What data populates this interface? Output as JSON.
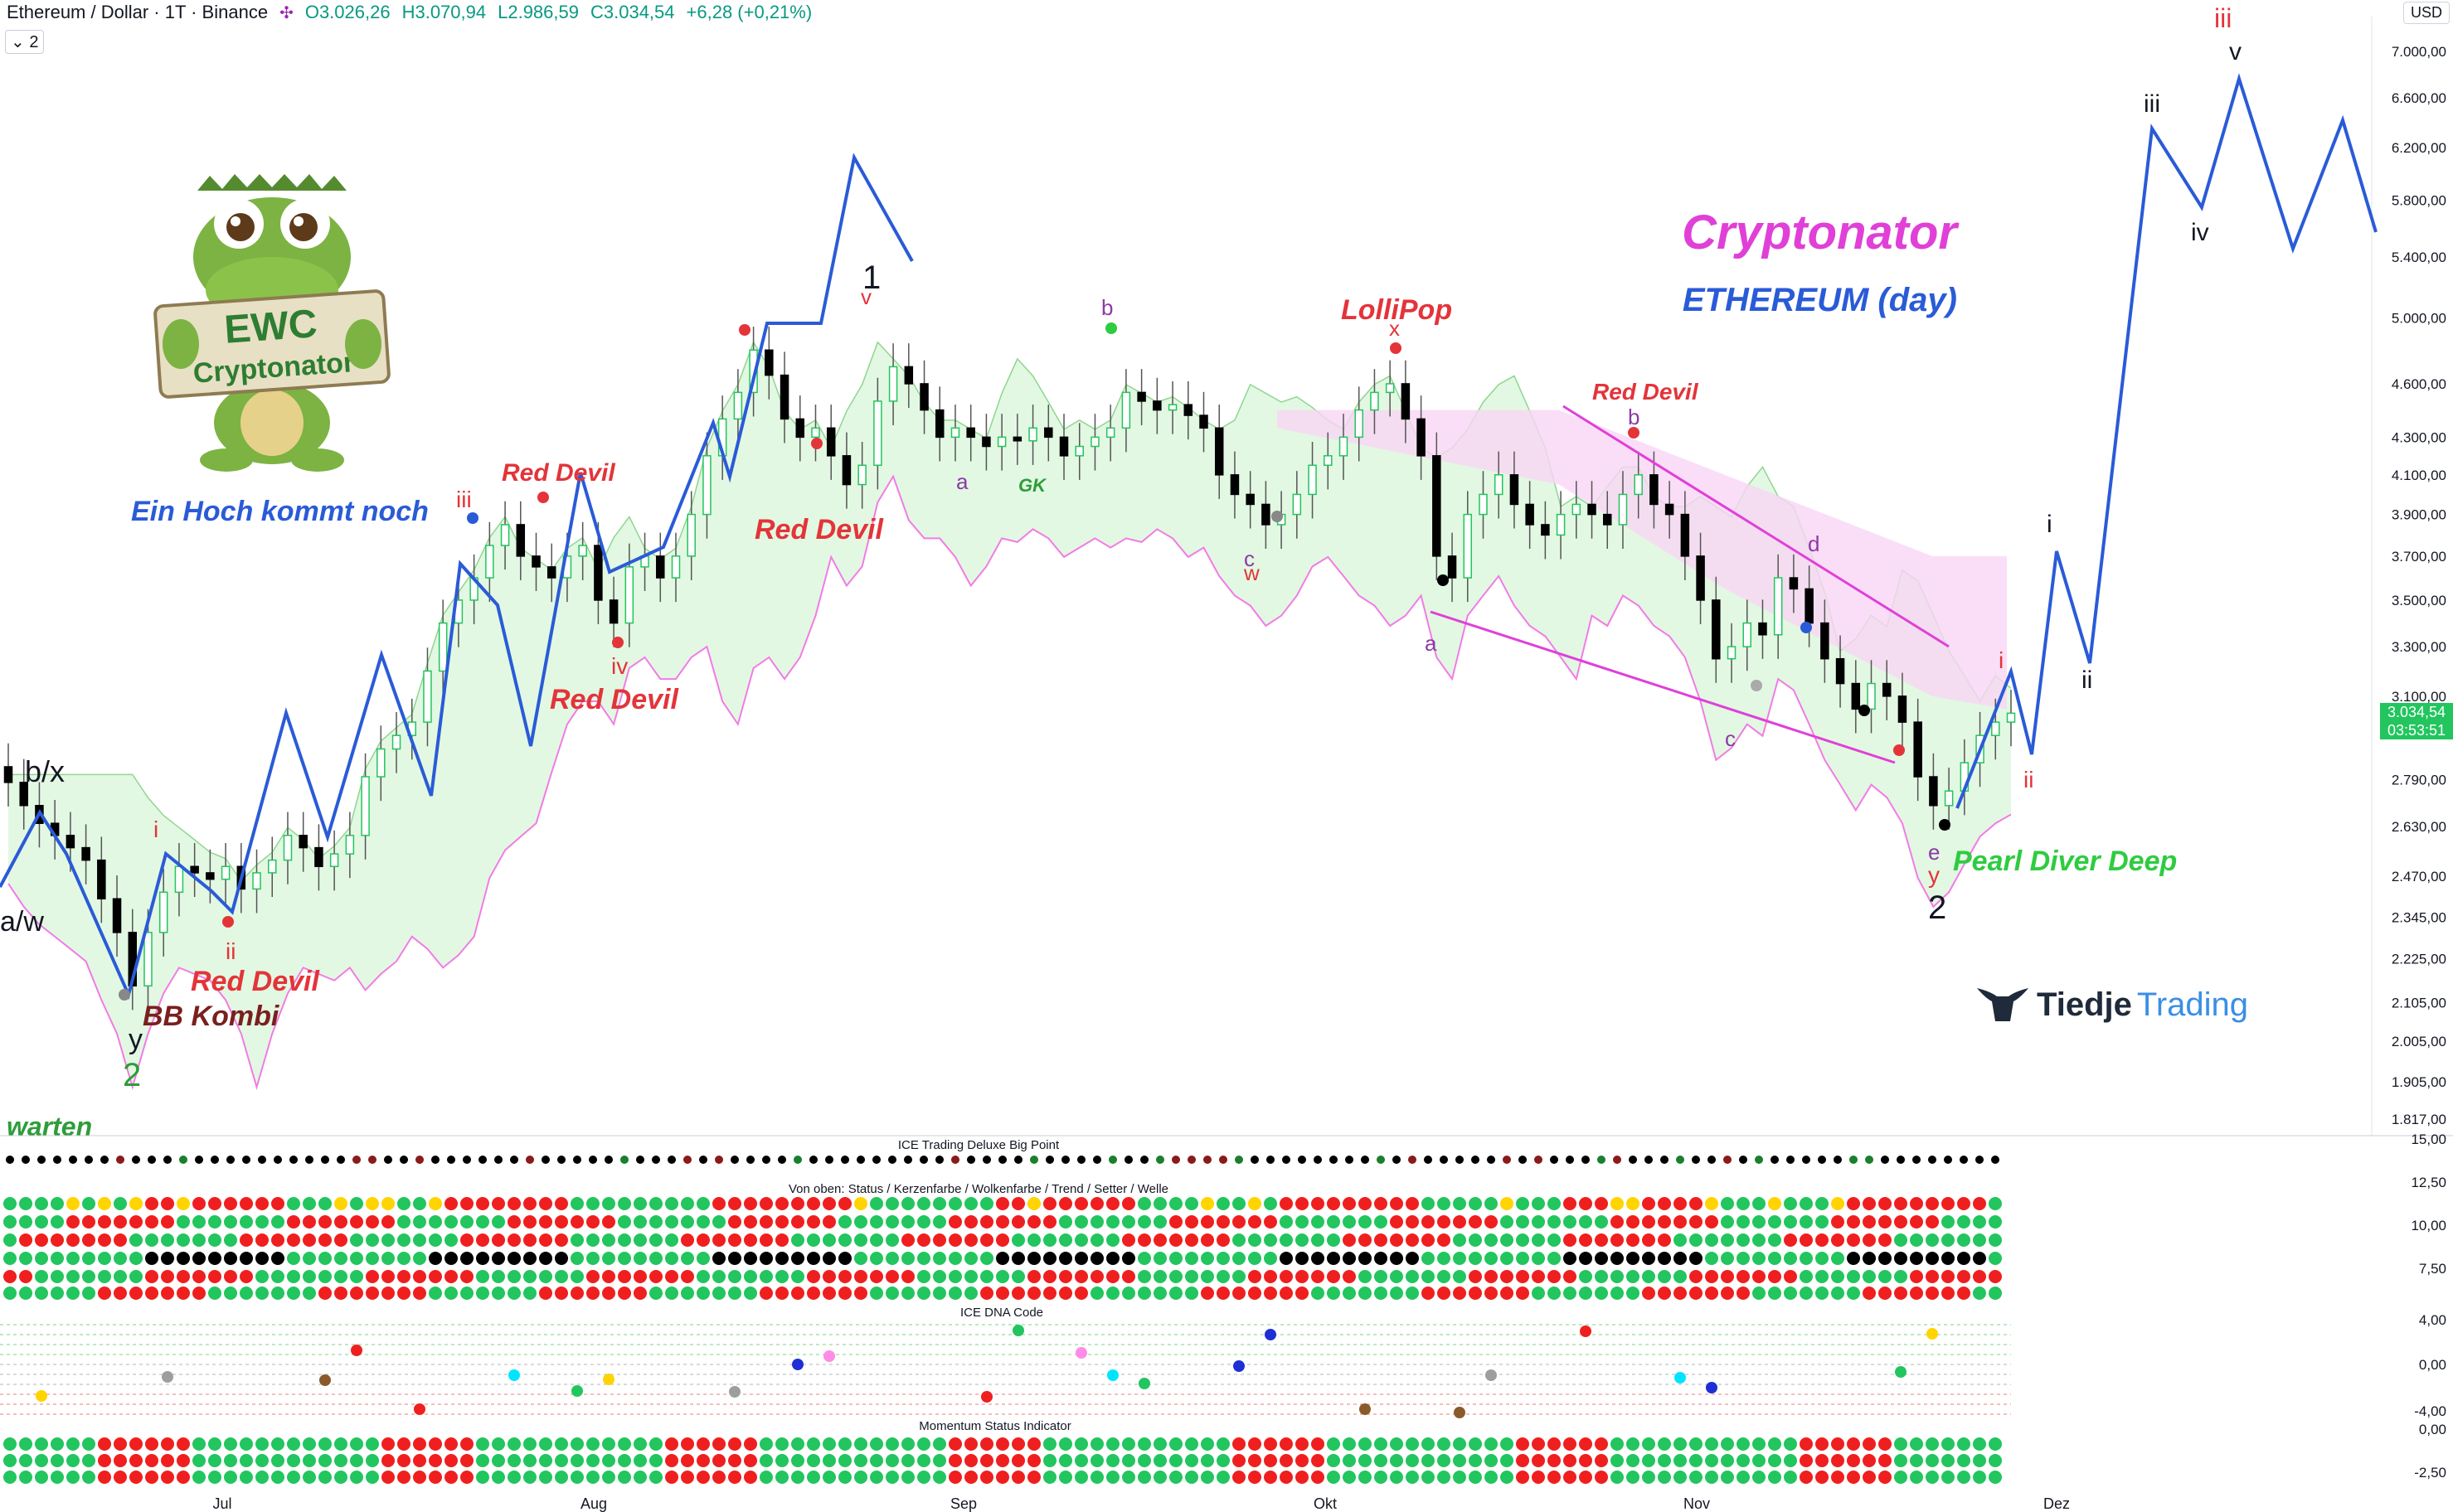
{
  "header": {
    "symbol": "Ethereum / Dollar · 1T · Binance",
    "open": "O3.026,26",
    "high": "H3.070,94",
    "low": "L2.986,59",
    "close": "C3.034,54",
    "change": "+6,28 (+0,21%)",
    "indicator_count": "2"
  },
  "currency": "USD",
  "current_price": "3.034,54",
  "countdown": "03:53:51",
  "colors": {
    "up": "#22c55e",
    "down": "#000000",
    "cloud_green": "#d8f5d8",
    "cloud_pink": "#f9d6f5",
    "wave": "#2a5bd7",
    "red_devil": "#e3343a",
    "magenta": "#e040d8",
    "purple": "#8e3aa6"
  },
  "mascot": {
    "icon": "crocodile-mascot-icon",
    "sign_line1": "EWC",
    "sign_line2": "Cryptonator"
  },
  "logo": {
    "part1": "Tiedje",
    "part2": "Trading",
    "icon": "bull-icon"
  },
  "chart_data": {
    "type": "candlestick",
    "y_axis_labels": [
      "7.000,00",
      "6.600,00",
      "6.200,00",
      "5.800,00",
      "5.400,00",
      "5.000,00",
      "4.600,00",
      "4.300,00",
      "4.100,00",
      "3.900,00",
      "3.700,00",
      "3.500,00",
      "3.300,00",
      "3.100,00",
      "2.790,00",
      "2.630,00",
      "2.470,00",
      "2.345,00",
      "2.225,00",
      "2.105,00",
      "2.005,00",
      "1.905,00",
      "1.817,00"
    ],
    "y_axis_values": [
      7000,
      6600,
      6200,
      5800,
      5400,
      5000,
      4600,
      4300,
      4100,
      3900,
      3700,
      3500,
      3300,
      3100,
      2790,
      2630,
      2470,
      2345,
      2225,
      2105,
      2005,
      1905,
      1817
    ],
    "x_axis_labels": [
      "Jul",
      "Aug",
      "Sep",
      "Okt",
      "Nov",
      "Dez"
    ],
    "close_path": [
      2780,
      2700,
      2640,
      2600,
      2560,
      2520,
      2400,
      2300,
      2150,
      2300,
      2420,
      2500,
      2480,
      2460,
      2500,
      2430,
      2480,
      2520,
      2600,
      2560,
      2500,
      2540,
      2600,
      2800,
      2900,
      2950,
      3000,
      3200,
      3400,
      3500,
      3600,
      3750,
      3850,
      3700,
      3650,
      3600,
      3700,
      3750,
      3500,
      3400,
      3650,
      3700,
      3600,
      3700,
      3900,
      4200,
      4400,
      4550,
      4800,
      4650,
      4400,
      4300,
      4350,
      4200,
      4050,
      4150,
      4500,
      4700,
      4600,
      4450,
      4300,
      4350,
      4300,
      4250,
      4300,
      4280,
      4350,
      4300,
      4200,
      4250,
      4300,
      4350,
      4550,
      4500,
      4450,
      4480,
      4420,
      4350,
      4100,
      4000,
      3950,
      3850,
      3900,
      4000,
      4150,
      4200,
      4300,
      4450,
      4550,
      4600,
      4400,
      4200,
      3700,
      3600,
      3900,
      4000,
      4100,
      3950,
      3850,
      3800,
      3900,
      3950,
      3900,
      3850,
      4000,
      4100,
      3950,
      3900,
      3700,
      3500,
      3250,
      3300,
      3400,
      3350,
      3600,
      3550,
      3400,
      3250,
      3150,
      3050,
      3150,
      3100,
      3000,
      2800,
      2700,
      2750,
      2850,
      2950,
      3000,
      3034
    ],
    "indicators": [
      "ICE Trading Deluxe Big Point",
      "Von oben: Status / Kerzenfarbe / Wolkenfarbe / Trend / Setter / Welle",
      "ICE DNA Code",
      "Momentum Status Indicator"
    ],
    "pane1_axis": [
      "15,00",
      "12,50",
      "10,00",
      "7,50"
    ],
    "pane2_axis": [
      "4,00",
      "0,00",
      "-4,00"
    ],
    "pane3_axis": [
      "0,00",
      "-2,50"
    ]
  },
  "annotations": {
    "title": "Cryptonator",
    "subtitle": "ETHEREUM (day)",
    "hoch": "Ein Hoch kommt noch",
    "red_devil": "Red Devil",
    "bb_kombi": "BB Kombi",
    "lollipop": "LolliPop",
    "pearl": "Pearl Diver Deep",
    "warten": "warten",
    "gk": "GK",
    "labels": {
      "bx": "b/x",
      "aw": "a/w",
      "y": "y",
      "two": "2",
      "one": "1",
      "i": "i",
      "ii": "ii",
      "iii": "iii",
      "iv": "iv",
      "v": "v",
      "a": "a",
      "b": "b",
      "c": "c",
      "d": "d",
      "e": "e",
      "w": "w",
      "x": "x"
    }
  }
}
